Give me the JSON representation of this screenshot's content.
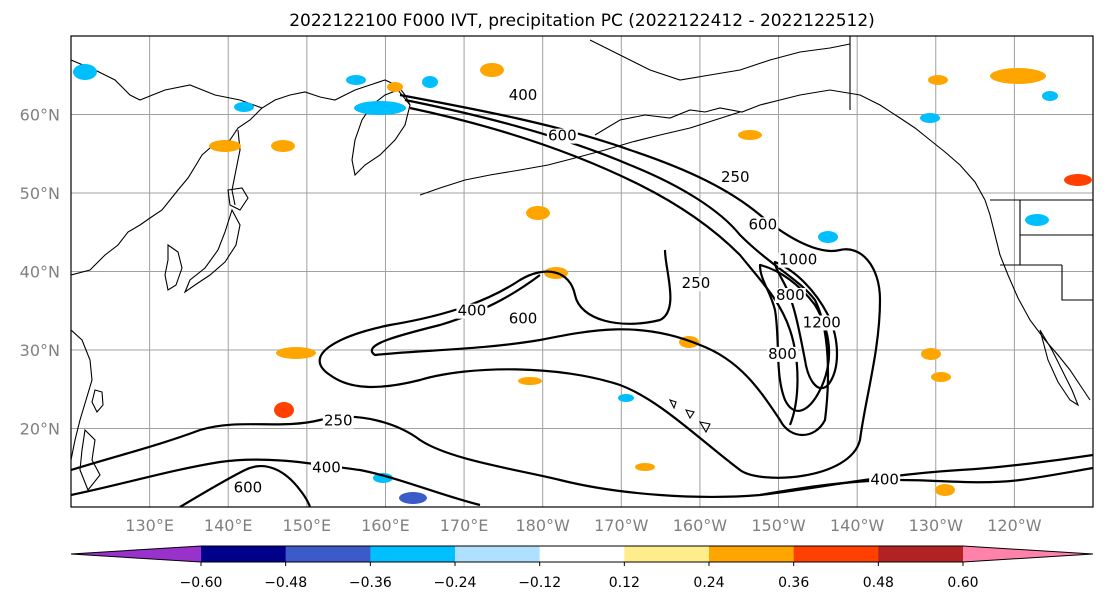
{
  "title": "2022122100 F000 IVT, precipitation PC (2022122412 - 2022122512)",
  "map": {
    "lat_labels": [
      "60°N",
      "50°N",
      "40°N",
      "30°N",
      "20°N"
    ],
    "lon_labels": [
      "130°E",
      "140°E",
      "150°E",
      "160°E",
      "170°E",
      "180°W",
      "170°W",
      "160°W",
      "150°W",
      "140°W",
      "130°W",
      "120°W"
    ],
    "lat_range": [
      10,
      70
    ],
    "lon_range": [
      120,
      250
    ],
    "grid": true
  },
  "contour_labels": [
    {
      "text": "400",
      "lon": 177.5,
      "lat": 62.0
    },
    {
      "text": "600",
      "lon": 182.5,
      "lat": 56.8
    },
    {
      "text": "250",
      "lon": 204.5,
      "lat": 51.5
    },
    {
      "text": "600",
      "lon": 208.0,
      "lat": 45.5
    },
    {
      "text": "1000",
      "lon": 212.5,
      "lat": 41.0
    },
    {
      "text": "250",
      "lon": 199.5,
      "lat": 38.0
    },
    {
      "text": "800",
      "lon": 211.5,
      "lat": 36.5
    },
    {
      "text": "1200",
      "lon": 215.5,
      "lat": 33.0
    },
    {
      "text": "800",
      "lon": 210.5,
      "lat": 29.0
    },
    {
      "text": "400",
      "lon": 171.0,
      "lat": 34.5
    },
    {
      "text": "600",
      "lon": 177.5,
      "lat": 33.5
    },
    {
      "text": "250",
      "lon": 154.0,
      "lat": 20.5
    },
    {
      "text": "400",
      "lon": 152.5,
      "lat": 14.5
    },
    {
      "text": "600",
      "lon": 142.5,
      "lat": 12.0
    },
    {
      "text": "400",
      "lon": 223.5,
      "lat": 13.0
    }
  ],
  "colorbar": {
    "labels": [
      "−0.60",
      "−0.48",
      "−0.36",
      "−0.24",
      "−0.12",
      "0.12",
      "0.24",
      "0.36",
      "0.48",
      "0.60"
    ],
    "colors": [
      "#9932cc",
      "#00008b",
      "#3a5bc8",
      "#00bfff",
      "#b0e0ff",
      "#ffffff",
      "#ffec8b",
      "#ffa500",
      "#ff4000",
      "#b22222",
      "#ff82ab"
    ]
  }
}
